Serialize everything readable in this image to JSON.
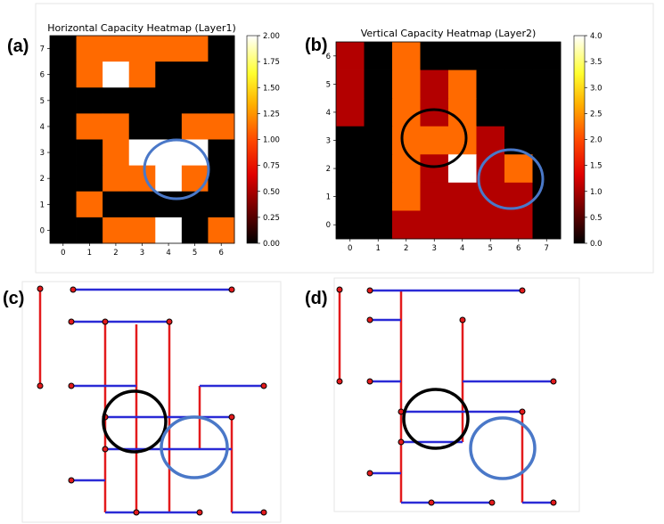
{
  "panels": {
    "a": {
      "label": "(a)",
      "title": "Horizontal Capacity Heatmap (Layer1)"
    },
    "b": {
      "label": "(b)",
      "title": "Vertical Capacity Heatmap (Layer2)"
    },
    "c": {
      "label": "(c)"
    },
    "d": {
      "label": "(d)"
    }
  },
  "chart_data": [
    {
      "type": "heatmap",
      "title": "Horizontal Capacity Heatmap (Layer1)",
      "x_ticks": [
        "0",
        "1",
        "2",
        "3",
        "4",
        "5",
        "6"
      ],
      "y_ticks": [
        "0",
        "1",
        "2",
        "3",
        "4",
        "5",
        "6",
        "7"
      ],
      "colorbar": {
        "min": 0.0,
        "max": 2.0,
        "ticks": [
          "0.00",
          "0.25",
          "0.50",
          "0.75",
          "1.00",
          "1.25",
          "1.50",
          "1.75",
          "2.00"
        ]
      },
      "rows_top_to_bottom": [
        [
          0,
          1,
          1,
          1,
          1,
          1,
          0
        ],
        [
          0,
          1,
          2,
          1,
          0,
          0,
          0
        ],
        [
          0,
          0,
          0,
          0,
          0,
          0,
          0
        ],
        [
          0,
          1,
          1,
          0,
          0,
          1,
          1
        ],
        [
          0,
          0,
          1,
          2,
          2,
          2,
          0
        ],
        [
          0,
          0,
          1,
          1,
          2,
          1,
          0
        ],
        [
          0,
          1,
          0,
          0,
          0,
          0,
          0
        ],
        [
          0,
          0,
          1,
          1,
          2,
          0,
          1
        ]
      ]
    },
    {
      "type": "heatmap",
      "title": "Vertical Capacity Heatmap (Layer2)",
      "x_ticks": [
        "0",
        "1",
        "2",
        "3",
        "4",
        "5",
        "6",
        "7"
      ],
      "y_ticks": [
        "0",
        "1",
        "2",
        "3",
        "4",
        "5",
        "6"
      ],
      "colorbar": {
        "min": 0.0,
        "max": 4.0,
        "ticks": [
          "0.0",
          "0.5",
          "1.0",
          "1.5",
          "2.0",
          "2.5",
          "3.0",
          "3.5",
          "4.0"
        ]
      },
      "rows_top_to_bottom": [
        [
          1,
          0,
          2,
          0,
          0,
          0,
          0,
          0
        ],
        [
          1,
          0,
          2,
          1,
          2,
          0,
          0,
          0
        ],
        [
          1,
          0,
          2,
          1,
          2,
          0,
          0,
          0
        ],
        [
          0,
          0,
          2,
          2,
          2,
          1,
          0,
          0
        ],
        [
          0,
          0,
          2,
          1,
          4,
          1,
          2,
          0
        ],
        [
          0,
          0,
          2,
          1,
          1,
          1,
          1,
          0
        ],
        [
          0,
          0,
          1,
          1,
          1,
          1,
          1,
          0
        ]
      ]
    }
  ],
  "colors": {
    "heat_orange": "#ff6a00",
    "heat_red": "#b30000",
    "heat_white": "#ffffff",
    "heat_black": "#000000",
    "route_blue": "#2a2ad6",
    "route_red": "#e31a1c",
    "circle_blue": "#4a78c8"
  }
}
